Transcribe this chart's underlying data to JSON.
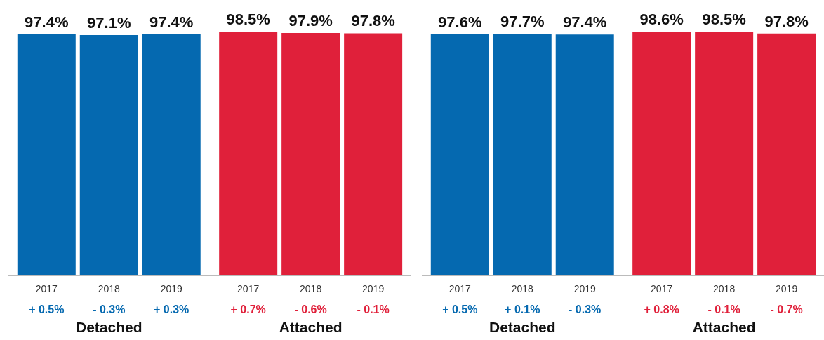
{
  "chart_data": [
    {
      "type": "bar",
      "categories": [
        "2017",
        "2018",
        "2019",
        "2017",
        "2018",
        "2019"
      ],
      "values": [
        97.4,
        97.1,
        97.4,
        98.5,
        97.9,
        97.8
      ],
      "colors": [
        "#0569b0",
        "#0569b0",
        "#0569b0",
        "#e0203a",
        "#e0203a",
        "#e0203a"
      ],
      "value_labels": [
        "97.4%",
        "97.1%",
        "97.4%",
        "98.5%",
        "97.9%",
        "97.8%"
      ],
      "annotations": [
        "+ 0.5%",
        "- 0.3%",
        "+ 0.3%",
        "+ 0.7%",
        "- 0.6%",
        "- 0.1%",
        "Detached",
        "Attached"
      ]
    },
    {
      "type": "bar",
      "categories": [
        "2017",
        "2018",
        "2019",
        "2017",
        "2018",
        "2019"
      ],
      "values": [
        97.6,
        97.7,
        97.4,
        98.6,
        98.5,
        97.8
      ],
      "colors": [
        "#0569b0",
        "#0569b0",
        "#0569b0",
        "#e0203a",
        "#e0203a",
        "#e0203a"
      ],
      "value_labels": [
        "97.6%",
        "97.7%",
        "97.4%",
        "98.6%",
        "98.5%",
        "97.8%"
      ],
      "annotations": [
        "+ 0.5%",
        "+ 0.1%",
        "- 0.3%",
        "+ 0.8%",
        "- 0.1%",
        "- 0.7%",
        "Detached",
        "Attached"
      ]
    }
  ]
}
